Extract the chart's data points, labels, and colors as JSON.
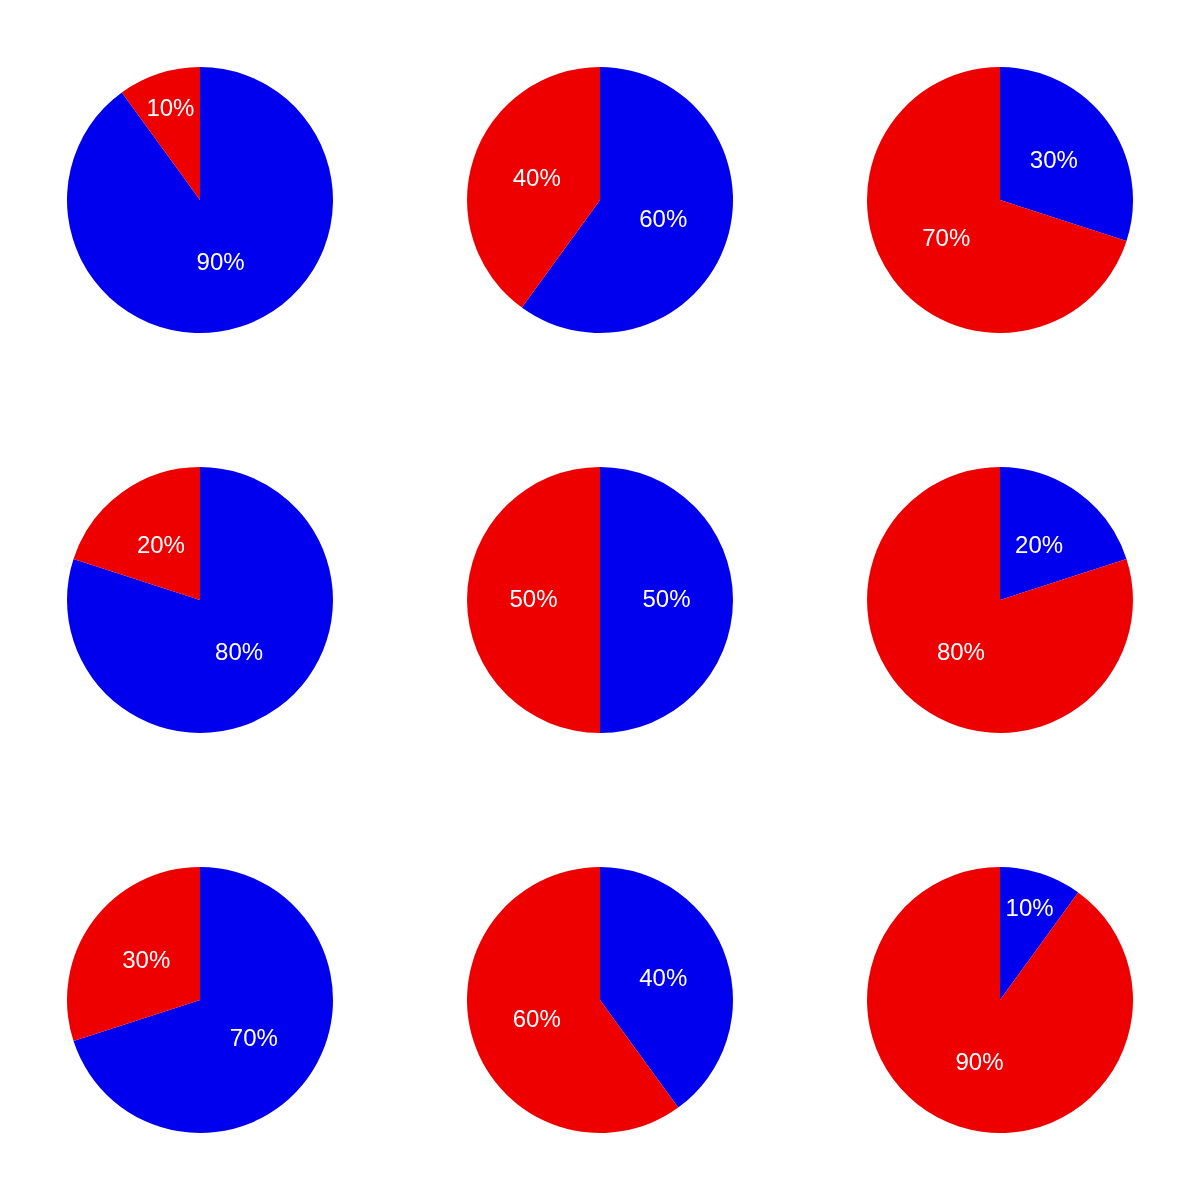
{
  "chart_data": [
    {
      "type": "pie",
      "categories": [
        null,
        null
      ],
      "values": [
        90,
        10
      ],
      "colors": [
        "#0000ee",
        "#ee0000"
      ],
      "value_labels": [
        "90%",
        "10%"
      ]
    },
    {
      "type": "pie",
      "categories": [
        null,
        null
      ],
      "values": [
        60,
        40
      ],
      "colors": [
        "#0000ee",
        "#ee0000"
      ],
      "value_labels": [
        "60%",
        "40%"
      ]
    },
    {
      "type": "pie",
      "categories": [
        null,
        null
      ],
      "values": [
        30,
        70
      ],
      "colors": [
        "#0000ee",
        "#ee0000"
      ],
      "value_labels": [
        "30%",
        "70%"
      ]
    },
    {
      "type": "pie",
      "categories": [
        null,
        null
      ],
      "values": [
        80,
        20
      ],
      "colors": [
        "#0000ee",
        "#ee0000"
      ],
      "value_labels": [
        "80%",
        "20%"
      ]
    },
    {
      "type": "pie",
      "categories": [
        null,
        null
      ],
      "values": [
        50,
        50
      ],
      "colors": [
        "#0000ee",
        "#ee0000"
      ],
      "value_labels": [
        "50%",
        "50%"
      ]
    },
    {
      "type": "pie",
      "categories": [
        null,
        null
      ],
      "values": [
        20,
        80
      ],
      "colors": [
        "#0000ee",
        "#ee0000"
      ],
      "value_labels": [
        "20%",
        "80%"
      ]
    },
    {
      "type": "pie",
      "categories": [
        null,
        null
      ],
      "values": [
        70,
        30
      ],
      "colors": [
        "#0000ee",
        "#ee0000"
      ],
      "value_labels": [
        "70%",
        "30%"
      ]
    },
    {
      "type": "pie",
      "categories": [
        null,
        null
      ],
      "values": [
        40,
        60
      ],
      "colors": [
        "#0000ee",
        "#ee0000"
      ],
      "value_labels": [
        "40%",
        "60%"
      ]
    },
    {
      "type": "pie",
      "categories": [
        null,
        null
      ],
      "values": [
        10,
        90
      ],
      "colors": [
        "#0000ee",
        "#ee0000"
      ],
      "value_labels": [
        "10%",
        "90%"
      ]
    }
  ]
}
